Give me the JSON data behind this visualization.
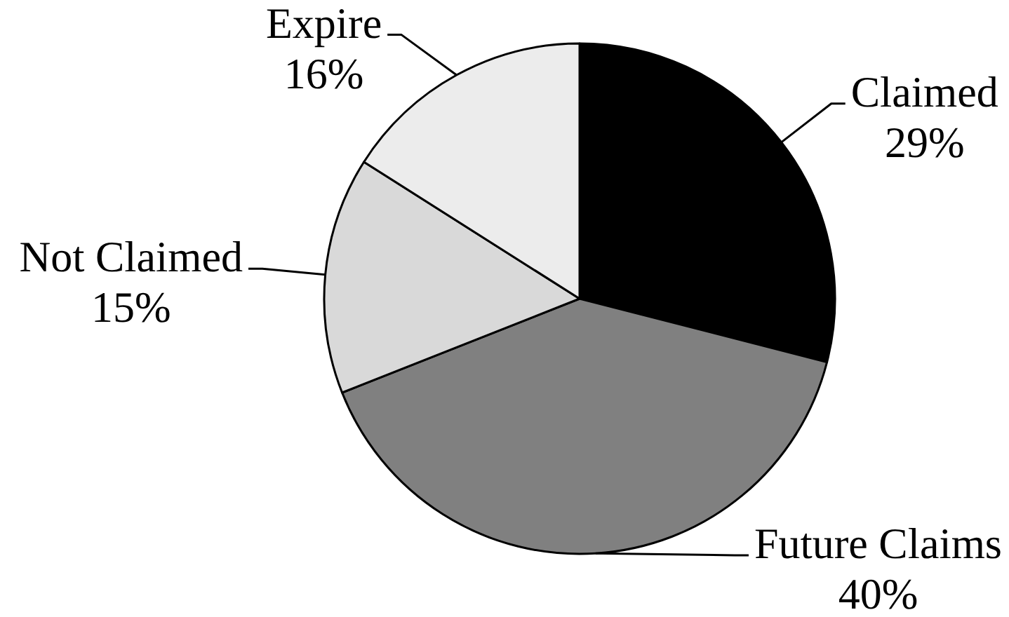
{
  "chart_data": {
    "type": "pie",
    "categories": [
      "Claimed",
      "Future Claims",
      "Not Claimed",
      "Expire"
    ],
    "values": [
      29,
      40,
      15,
      16
    ],
    "colors": [
      "#000000",
      "#808080",
      "#d9d9d9",
      "#ececec"
    ],
    "value_labels": [
      "29%",
      "40%",
      "15%",
      "16%"
    ]
  }
}
